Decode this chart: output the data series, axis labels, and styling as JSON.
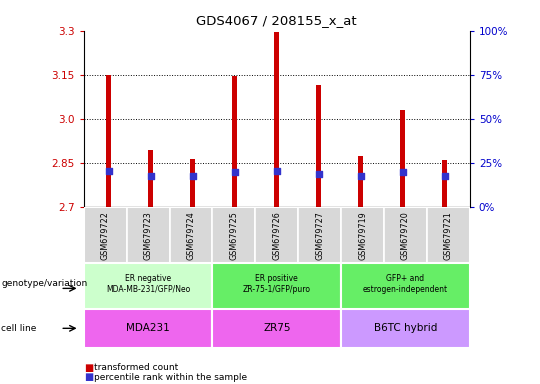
{
  "title": "GDS4067 / 208155_x_at",
  "samples": [
    "GSM679722",
    "GSM679723",
    "GSM679724",
    "GSM679725",
    "GSM679726",
    "GSM679727",
    "GSM679719",
    "GSM679720",
    "GSM679721"
  ],
  "transformed_count": [
    3.15,
    2.895,
    2.865,
    3.145,
    3.295,
    3.115,
    2.875,
    3.03,
    2.86
  ],
  "percentile_rank_y": [
    2.822,
    2.808,
    2.806,
    2.82,
    2.825,
    2.814,
    2.807,
    2.819,
    2.806
  ],
  "ylim": [
    2.7,
    3.3
  ],
  "y_ticks_left": [
    2.7,
    2.85,
    3.0,
    3.15,
    3.3
  ],
  "y_ticks_right_vals": [
    0,
    25,
    50,
    75,
    100
  ],
  "bar_color": "#cc0000",
  "dot_color": "#3333cc",
  "bar_width": 0.12,
  "dot_size": 20,
  "groups": [
    {
      "label": "ER negative\nMDA-MB-231/GFP/Neo",
      "start": 0,
      "end": 3,
      "color": "#ccffcc"
    },
    {
      "label": "ER positive\nZR-75-1/GFP/puro",
      "start": 3,
      "end": 6,
      "color": "#66ee66"
    },
    {
      "label": "GFP+ and\nestrogen-independent",
      "start": 6,
      "end": 9,
      "color": "#66ee66"
    }
  ],
  "cell_lines": [
    {
      "label": "MDA231",
      "start": 0,
      "end": 3,
      "color": "#ee66ee"
    },
    {
      "label": "ZR75",
      "start": 3,
      "end": 6,
      "color": "#ee66ee"
    },
    {
      "label": "B6TC hybrid",
      "start": 6,
      "end": 9,
      "color": "#cc99ff"
    }
  ],
  "genotype_label": "genotype/variation",
  "cell_line_label": "cell line",
  "legend_items": [
    {
      "color": "#cc0000",
      "label": "transformed count"
    },
    {
      "color": "#3333cc",
      "label": "percentile rank within the sample"
    }
  ],
  "grid_color": "black",
  "left_tick_color": "#cc0000",
  "right_tick_color": "#0000cc",
  "bg_color": "#d8d8d8"
}
